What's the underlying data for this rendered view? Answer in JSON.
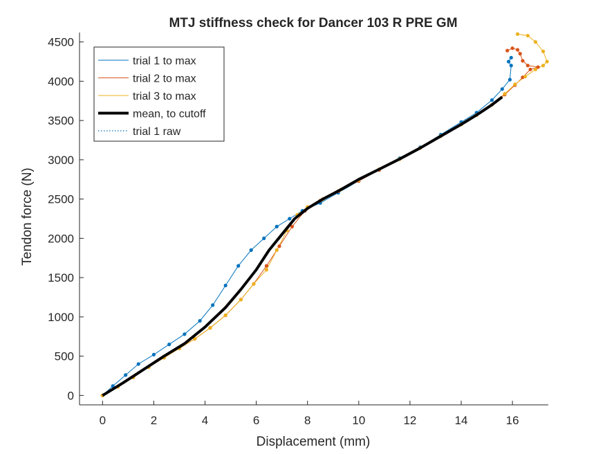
{
  "chart_data": {
    "type": "line",
    "title": "MTJ stiffness check for Dancer 103 R PRE GM",
    "xlabel": "Displacement (mm)",
    "ylabel": "Tendon force (N)",
    "xlim": [
      -0.9,
      17.4
    ],
    "ylim": [
      -120,
      4620
    ],
    "xticks": [
      0,
      2,
      4,
      6,
      8,
      10,
      12,
      14,
      16
    ],
    "yticks": [
      0,
      500,
      1000,
      1500,
      2000,
      2500,
      3000,
      3500,
      4000,
      4500
    ],
    "legend_position": "top-left",
    "grid": false,
    "series": [
      {
        "name": "trial 1 to max",
        "color": "#0072BD",
        "style": "line",
        "x": [
          0,
          0.4,
          0.9,
          1.4,
          2.0,
          2.6,
          3.2,
          3.8,
          4.3,
          4.8,
          5.3,
          5.8,
          6.3,
          6.8,
          7.3,
          7.8,
          8.5,
          9.2,
          10.0,
          10.8,
          11.6,
          12.4,
          13.2,
          14.0,
          14.6,
          15.2,
          15.6,
          15.9,
          15.95,
          15.85,
          15.95
        ],
        "y": [
          0,
          120,
          260,
          400,
          520,
          650,
          780,
          950,
          1150,
          1400,
          1650,
          1850,
          2000,
          2150,
          2250,
          2350,
          2450,
          2580,
          2730,
          2870,
          3020,
          3160,
          3320,
          3480,
          3600,
          3760,
          3900,
          4020,
          4200,
          4250,
          4300
        ]
      },
      {
        "name": "trial 2 to max",
        "color": "#D95319",
        "style": "line",
        "x": [
          0,
          0.6,
          1.2,
          1.8,
          2.4,
          3.0,
          3.6,
          4.2,
          4.8,
          5.4,
          5.9,
          6.4,
          6.9,
          7.4,
          7.9,
          8.5,
          9.2,
          10.0,
          10.8,
          11.6,
          12.4,
          13.2,
          14.0,
          14.6,
          15.2,
          15.7,
          16.1,
          16.4,
          16.7,
          17.0,
          16.6,
          16.4,
          16.3,
          16.2,
          16.0,
          15.8
        ],
        "y": [
          0,
          110,
          230,
          360,
          480,
          600,
          720,
          860,
          1020,
          1220,
          1420,
          1650,
          1900,
          2150,
          2350,
          2480,
          2600,
          2730,
          2870,
          3010,
          3150,
          3300,
          3450,
          3570,
          3700,
          3830,
          3950,
          4050,
          4150,
          4180,
          4200,
          4260,
          4350,
          4400,
          4420,
          4390
        ]
      },
      {
        "name": "trial 3 to max",
        "color": "#EDB120",
        "style": "line",
        "x": [
          0,
          0.6,
          1.2,
          1.8,
          2.4,
          3.0,
          3.6,
          4.2,
          4.8,
          5.4,
          5.9,
          6.4,
          6.8,
          7.2,
          7.6,
          8.0,
          8.6,
          9.3,
          10.0,
          10.8,
          11.6,
          12.4,
          13.2,
          14.0,
          14.6,
          15.2,
          15.7,
          16.1,
          16.5,
          16.9,
          17.2,
          17.35,
          17.2,
          16.9,
          16.6,
          16.2
        ],
        "y": [
          0,
          110,
          230,
          360,
          480,
          600,
          720,
          860,
          1020,
          1220,
          1420,
          1600,
          1850,
          2100,
          2300,
          2400,
          2500,
          2620,
          2740,
          2880,
          3010,
          3150,
          3300,
          3450,
          3570,
          3700,
          3840,
          3960,
          4060,
          4150,
          4200,
          4250,
          4380,
          4500,
          4580,
          4600
        ]
      },
      {
        "name": "mean, to cutoff",
        "color": "#000000",
        "style": "thick",
        "x": [
          0,
          0.8,
          1.6,
          2.4,
          3.2,
          4.0,
          4.8,
          5.4,
          6.0,
          6.5,
          7.0,
          7.5,
          8.0,
          8.6,
          9.3,
          10.0,
          10.8,
          11.6,
          12.4,
          13.2,
          14.0,
          14.6,
          15.2,
          15.6
        ],
        "y": [
          0,
          160,
          330,
          500,
          660,
          870,
          1120,
          1350,
          1600,
          1850,
          2050,
          2250,
          2380,
          2500,
          2620,
          2750,
          2880,
          3010,
          3150,
          3300,
          3450,
          3570,
          3700,
          3800
        ]
      },
      {
        "name": "trial 1 raw",
        "color": "#0072BD",
        "style": "dotted"
      }
    ]
  }
}
